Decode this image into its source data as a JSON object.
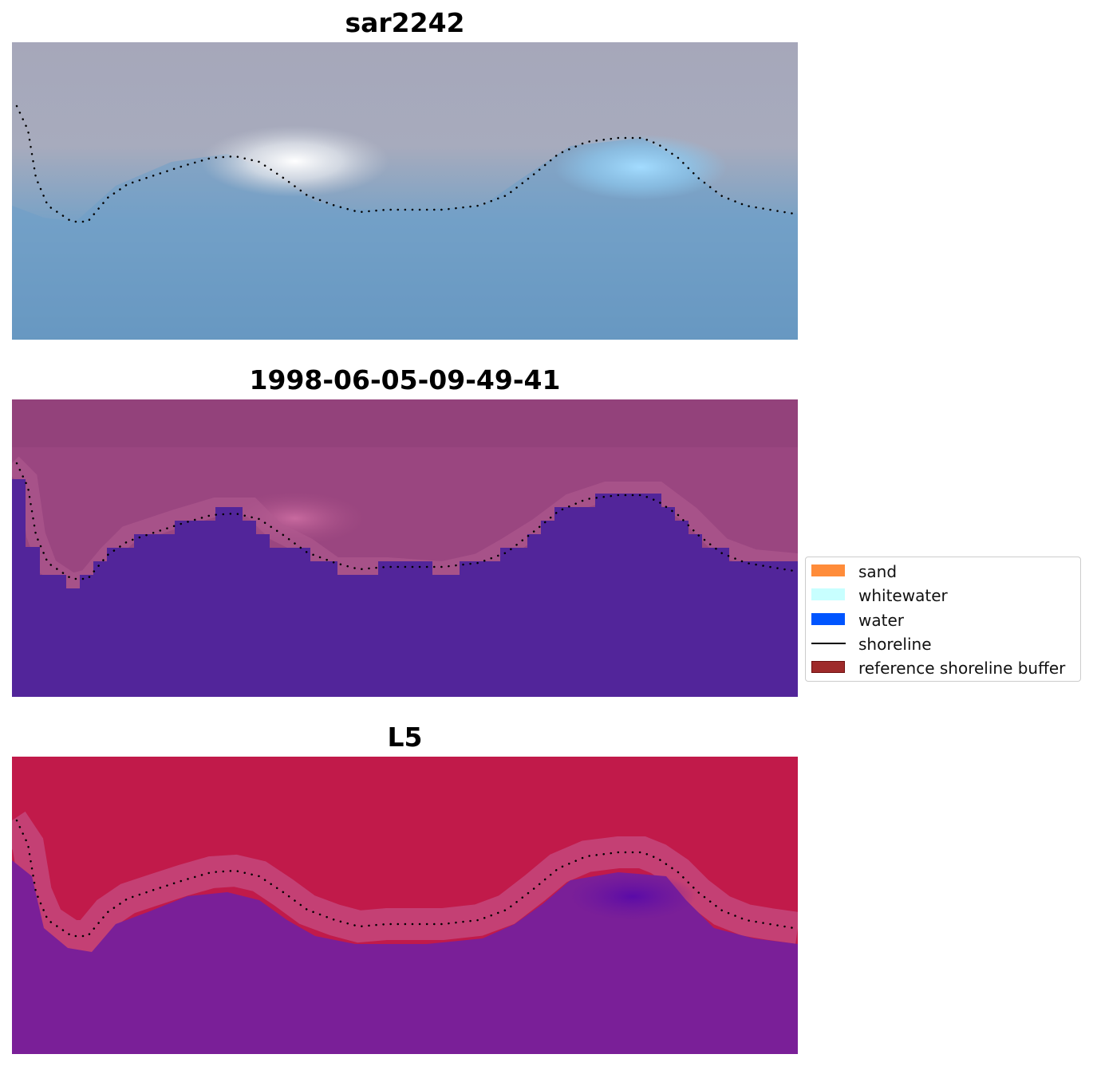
{
  "panels": [
    {
      "title": "sar2242",
      "palette": "rgb"
    },
    {
      "title": "1998-06-05-09-49-41",
      "palette": "classified"
    },
    {
      "title": "L5",
      "palette": "index"
    }
  ],
  "legend": {
    "items": [
      {
        "label": "sand",
        "color": "#ff8c3a",
        "kind": "patch"
      },
      {
        "label": "whitewater",
        "color": "#c8ffff",
        "kind": "patch"
      },
      {
        "label": "water",
        "color": "#0055ff",
        "kind": "patch"
      },
      {
        "label": "shoreline",
        "color": "#000000",
        "kind": "line"
      },
      {
        "label": "reference shoreline buffer",
        "color": "#9e2a2a",
        "kind": "patch"
      }
    ]
  }
}
